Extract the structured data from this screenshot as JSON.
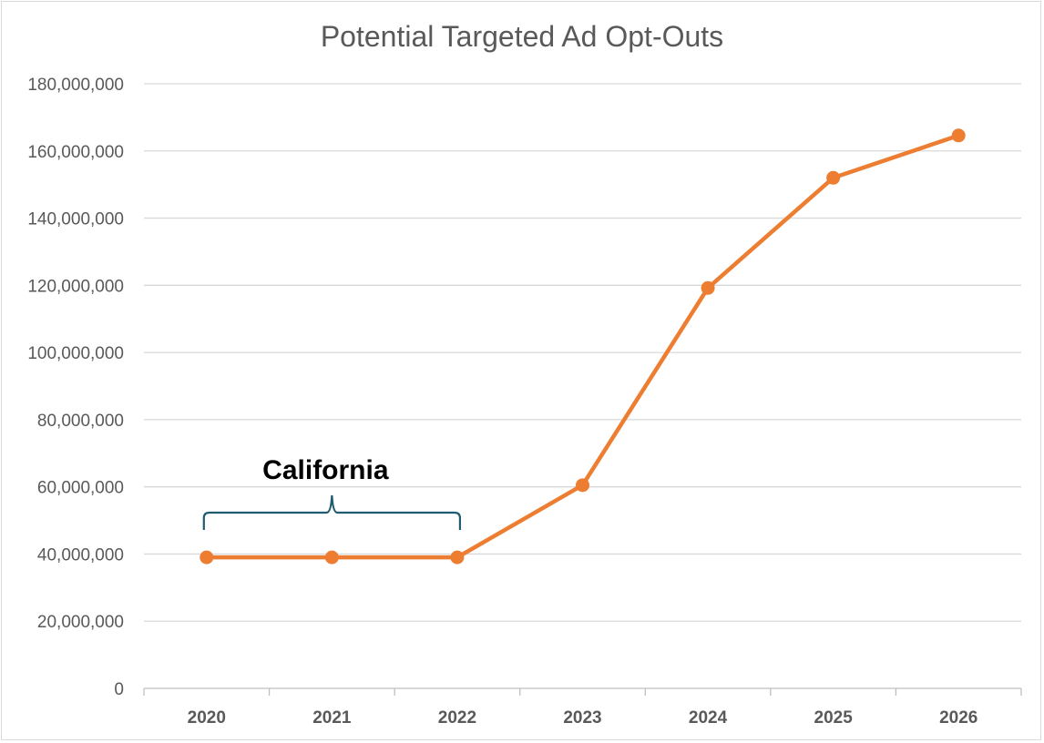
{
  "chart_data": {
    "type": "line",
    "title": "Potential Targeted Ad Opt-Outs",
    "xlabel": "",
    "ylabel": "",
    "categories": [
      "2020",
      "2021",
      "2022",
      "2023",
      "2024",
      "2025",
      "2026"
    ],
    "series": [
      {
        "name": "Potential Targeted Ad Opt-Outs",
        "color": "#ed7d31",
        "values": [
          39000000,
          39000000,
          39000000,
          60500000,
          119200000,
          152000000,
          164600000
        ]
      }
    ],
    "ylim": [
      0,
      180000000
    ],
    "yticks": [
      0,
      20000000,
      40000000,
      60000000,
      80000000,
      100000000,
      120000000,
      140000000,
      160000000,
      180000000
    ],
    "ytick_labels": [
      "0",
      "20,000,000",
      "40,000,000",
      "60,000,000",
      "80,000,000",
      "100,000,000",
      "120,000,000",
      "140,000,000",
      "160,000,000",
      "180,000,000"
    ],
    "grid": true,
    "annotation": {
      "text": "California",
      "span_start": "2020",
      "span_end": "2022",
      "bracket_color": "#1f5c70"
    }
  }
}
